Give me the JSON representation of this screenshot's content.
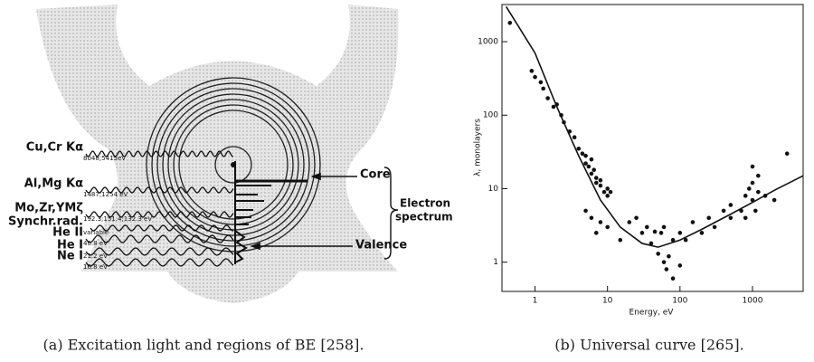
{
  "diagram": {
    "sources": [
      {
        "name": "Cu,Cr Kα",
        "energy": "8048;5415eV"
      },
      {
        "name": "Al,Mg Kα",
        "energy": "1487;1254 eV"
      },
      {
        "name": "Mo,Zr,YMζ",
        "energy": "192.3;151.4;132.3 eV"
      },
      {
        "name": "Synchr.rad.",
        "energy": "variable"
      },
      {
        "name": "He II",
        "energy": "40.8 eV"
      },
      {
        "name": "He I",
        "energy": "21.2 eV"
      },
      {
        "name": "Ne I",
        "energy": "16.8 eV"
      }
    ],
    "core": "Core",
    "valence": "Valence",
    "spectrum": [
      "Electron",
      "spectrum"
    ]
  },
  "chart_data": {
    "type": "scatter",
    "xlabel": "Energy, eV",
    "ylabel": "λ, monolayers",
    "xscale": "log",
    "yscale": "log",
    "xlim": [
      0.35,
      5000
    ],
    "ylim": [
      0.4,
      3200
    ],
    "xticks": [
      1,
      10,
      100,
      1000
    ],
    "yticks": [
      1,
      10,
      100,
      1000
    ],
    "color": "#111111",
    "x": [
      0.45,
      0.9,
      1,
      1.2,
      1.3,
      1.5,
      1.8,
      2,
      2.3,
      2.5,
      3,
      3.5,
      4,
      4.5,
      5,
      5,
      5.5,
      6,
      6,
      6.5,
      7,
      7,
      8,
      8,
      9,
      10,
      10,
      11,
      5,
      6,
      8,
      7,
      10,
      15,
      20,
      25,
      30,
      35,
      40,
      45,
      50,
      55,
      60,
      60,
      65,
      70,
      80,
      80,
      100,
      100,
      120,
      150,
      200,
      250,
      300,
      400,
      500,
      500,
      700,
      800,
      900,
      1000,
      1000,
      1100,
      1200,
      1200,
      1500,
      2000,
      3000,
      1000,
      800
    ],
    "y": [
      1800,
      400,
      330,
      280,
      230,
      170,
      130,
      140,
      100,
      80,
      60,
      50,
      35,
      30,
      28,
      22,
      20,
      25,
      16,
      18,
      14,
      12,
      11,
      13,
      9,
      10,
      8,
      9,
      5,
      4,
      3.5,
      2.5,
      3,
      2,
      3.5,
      4,
      2.5,
      3,
      1.8,
      2.6,
      1.3,
      2.5,
      1,
      3,
      0.8,
      1.2,
      0.6,
      2,
      0.9,
      2.5,
      2,
      3.5,
      2.5,
      4,
      3,
      5,
      4,
      6,
      5,
      8,
      10,
      7,
      12,
      5,
      15,
      9,
      8,
      7,
      30,
      20,
      4
    ],
    "curve": {
      "x": [
        0.4,
        1,
        2,
        4,
        8,
        15,
        30,
        50,
        100,
        200,
        500,
        1000,
        2000,
        5000
      ],
      "y": [
        3000,
        700,
        130,
        28,
        7,
        3,
        1.8,
        1.6,
        2,
        2.8,
        4.5,
        6.5,
        9.5,
        15
      ]
    }
  },
  "captions": [
    "(a) Excitation light and regions of BE [258].",
    "(b) Universal curve [265]."
  ]
}
